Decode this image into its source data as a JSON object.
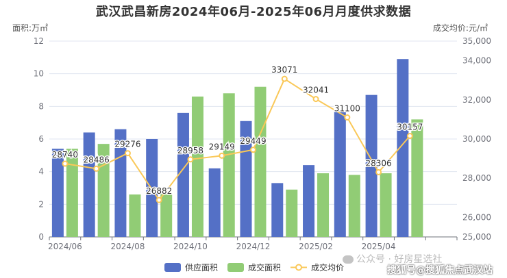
{
  "chart_data": {
    "type": "bar",
    "title": "武汉武昌新房2024年06月-2025年06月月度供求数据",
    "ylabel_left": "面积:万㎡",
    "ylabel_right": "成交均价:元/㎡",
    "categories": [
      "2024/06",
      "2024/07",
      "2024/08",
      "2024/09",
      "2024/10",
      "2024/11",
      "2024/12",
      "2025/01",
      "2025/02",
      "2025/03",
      "2025/04",
      "2025/05",
      "2025/06"
    ],
    "x_tick_labels": [
      "2024/06",
      "2024/08",
      "2024/10",
      "2024/12",
      "2025/02",
      "2025/04"
    ],
    "ylim_left": [
      0,
      12
    ],
    "yticks_left": [
      "0",
      "2",
      "4",
      "6",
      "8",
      "10",
      "12"
    ],
    "ylim_right": [
      25000,
      35000
    ],
    "yticks_right": [
      "25,000",
      "26,000",
      "28,000",
      "30,000",
      "32,000",
      "34,000",
      "35,000"
    ],
    "yticks_right_values": [
      25000,
      26000,
      28000,
      30000,
      32000,
      34000,
      35000
    ],
    "grid": true,
    "legend_position": "bottom",
    "series": [
      {
        "name": "供应面积",
        "type": "bar",
        "color": "#5470c6",
        "values": [
          5.4,
          6.4,
          6.6,
          6.0,
          7.6,
          4.2,
          7.1,
          3.3,
          4.4,
          7.8,
          8.7,
          10.9,
          0
        ]
      },
      {
        "name": "成交面积",
        "type": "bar",
        "color": "#91cc75",
        "values": [
          5.4,
          5.7,
          2.6,
          2.7,
          8.6,
          8.8,
          9.2,
          2.9,
          3.9,
          3.8,
          3.9,
          7.2,
          0
        ]
      },
      {
        "name": "成交均价",
        "type": "line",
        "color": "#fac858",
        "values": [
          28740,
          28486,
          29276,
          26882,
          28958,
          29149,
          29449,
          33071,
          32041,
          31100,
          28306,
          30157,
          null
        ],
        "labels": [
          "28740",
          "28486",
          "29276",
          "26882",
          "28958",
          "29149",
          "29449",
          "33071",
          "32041",
          "31100",
          "28306",
          "30157",
          ""
        ]
      }
    ]
  },
  "watermark": {
    "text": "公众号 · 好房星选社",
    "text2": "搜狐号@搜狐焦点武汉站"
  }
}
